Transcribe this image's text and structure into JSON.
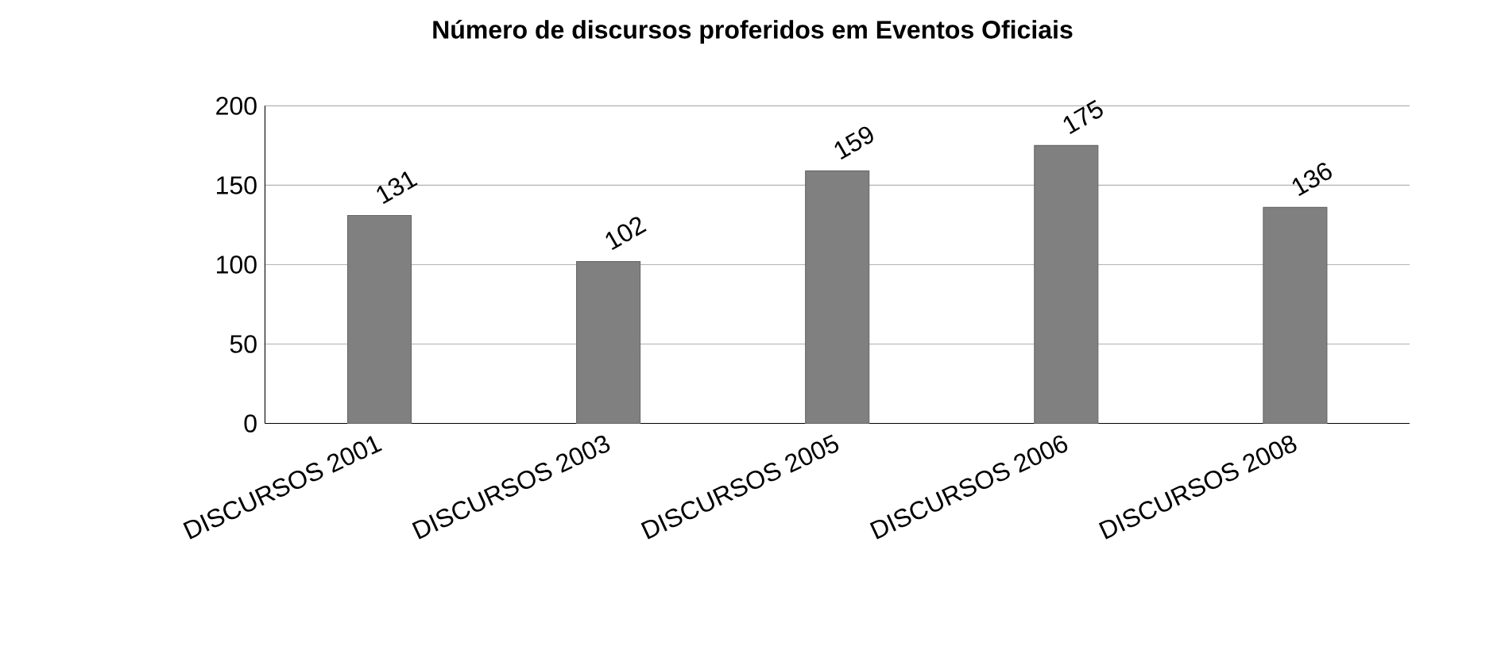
{
  "chart_data": {
    "type": "bar",
    "title": "Número de discursos proferidos em Eventos Oficiais",
    "categories": [
      "DISCURSOS 2001",
      "DISCURSOS 2003",
      "DISCURSOS 2005",
      "DISCURSOS 2006",
      "DISCURSOS 2008"
    ],
    "values": [
      131,
      102,
      159,
      175,
      136
    ],
    "color": "#808080",
    "ylim": [
      0,
      200
    ],
    "yticks": [
      0,
      50,
      100,
      150,
      200
    ],
    "grid": "y",
    "data_labels": true
  }
}
